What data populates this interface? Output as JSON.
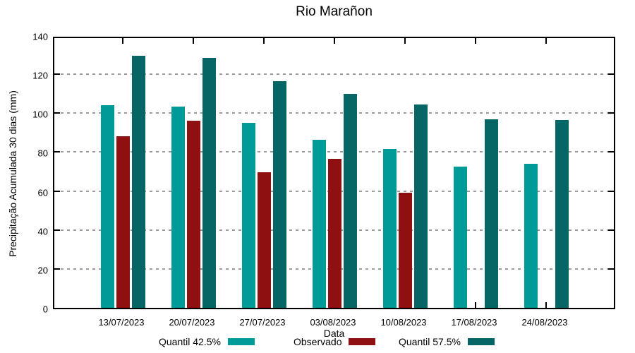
{
  "title": "Rio Marañon",
  "chart_data": {
    "type": "bar",
    "title": "Rio Marañon",
    "xlabel": "Data",
    "ylabel": "Precipitação Acumulada 30 dias (mm)",
    "ylim": [
      0,
      140
    ],
    "ytick_step": 20,
    "ytick_labels": [
      "0",
      "20",
      "40",
      "60",
      "80",
      "100",
      "120",
      "140"
    ],
    "grid": "horizontal-dashed",
    "legend_position": "bottom-center",
    "categories": [
      "13/07/2023",
      "20/07/2023",
      "27/07/2023",
      "03/08/2023",
      "10/08/2023",
      "17/08/2023",
      "24/08/2023"
    ],
    "series": [
      {
        "name": "Quantil 42.5%",
        "color": "#009A98",
        "values": [
          104,
          103.5,
          95,
          86.5,
          81.5,
          72.5,
          74
        ]
      },
      {
        "name": "Observado",
        "color": "#8F1010",
        "values": [
          88,
          96,
          69.5,
          76.5,
          59,
          null,
          null
        ]
      },
      {
        "name": "Quantil 57.5%",
        "color": "#066666",
        "values": [
          129.5,
          128.5,
          116.5,
          110,
          104.5,
          97,
          96.5
        ]
      }
    ]
  },
  "colors": {
    "axis": "#000000",
    "grid": "#9c9c9c",
    "background": "#ffffff"
  }
}
